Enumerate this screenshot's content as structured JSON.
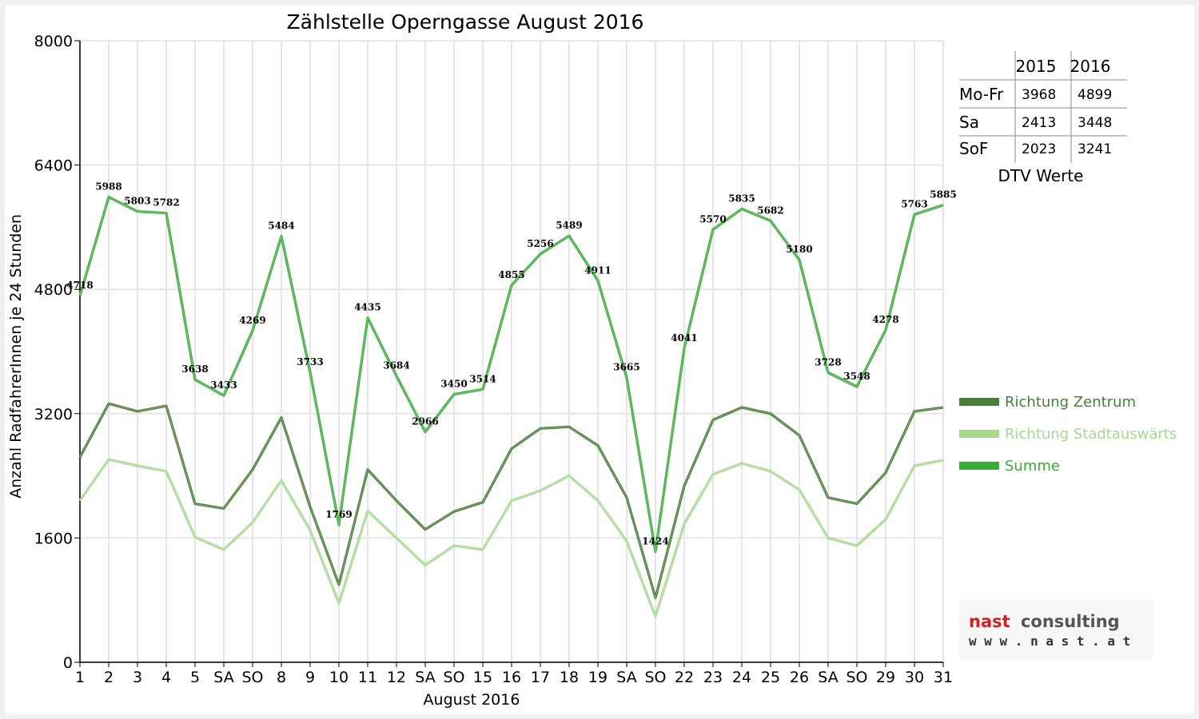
{
  "chart_data": {
    "type": "line",
    "title": "Zählstelle Operngasse August 2016",
    "xlabel": "August 2016",
    "ylabel": "Anzahl RadfahrerInnen je 24 Stunden",
    "ylim": [
      0,
      8000
    ],
    "yticks": [
      "0",
      "1600",
      "3200",
      "4800",
      "6400",
      "8000"
    ],
    "grid": true,
    "categories": [
      "1",
      "2",
      "3",
      "4",
      "5",
      "SA",
      "SO",
      "8",
      "9",
      "10",
      "11",
      "12",
      "SA",
      "SO",
      "15",
      "16",
      "17",
      "18",
      "19",
      "SA",
      "SO",
      "22",
      "23",
      "24",
      "25",
      "26",
      "SA",
      "SO",
      "29",
      "30",
      "31"
    ],
    "highlight_categories": [
      6,
      13,
      14,
      20,
      27
    ],
    "series": [
      {
        "name": "Richtung Zentrum",
        "color": "#4a7c3a",
        "values": [
          2640,
          3330,
          3230,
          3300,
          2040,
          1980,
          2480,
          3150,
          2000,
          1000,
          2480,
          2080,
          1710,
          1940,
          2060,
          2750,
          3010,
          3030,
          2790,
          2120,
          830,
          2270,
          3120,
          3280,
          3200,
          2920,
          2120,
          2040,
          2440,
          3230,
          3280
        ]
      },
      {
        "name": "Richtung Stadtauswärts",
        "color": "#a8d890",
        "values": [
          2080,
          2610,
          2530,
          2460,
          1610,
          1450,
          1800,
          2340,
          1700,
          760,
          1950,
          1600,
          1250,
          1500,
          1450,
          2080,
          2210,
          2400,
          2080,
          1560,
          590,
          1780,
          2420,
          2560,
          2460,
          2220,
          1600,
          1500,
          1840,
          2530,
          2600
        ]
      },
      {
        "name": "Summe",
        "color": "#3aaa3a",
        "show_labels": true,
        "values": [
          4718,
          5988,
          5803,
          5782,
          3638,
          3433,
          4269,
          5484,
          3733,
          1769,
          4435,
          3684,
          2966,
          3450,
          3514,
          4855,
          5256,
          5489,
          4911,
          3665,
          1424,
          4041,
          5570,
          5835,
          5682,
          5180,
          3728,
          3548,
          4278,
          5763,
          5885
        ]
      }
    ],
    "legend_placement": "right"
  },
  "dtv_table": {
    "caption": "DTV Werte",
    "col_2015": "2015",
    "col_2016": "2016",
    "rows": [
      {
        "label": "Mo-Fr",
        "v2015": "3968",
        "v2016": "4899"
      },
      {
        "label": "Sa",
        "v2015": "2413",
        "v2016": "3448"
      },
      {
        "label": "SoF",
        "v2015": "2023",
        "v2016": "3241"
      }
    ]
  },
  "logo": {
    "word1": "nast",
    "word2": "consulting",
    "url": "w w w . n a s t . a t",
    "color1": "#cc2222",
    "color2": "#555555"
  }
}
